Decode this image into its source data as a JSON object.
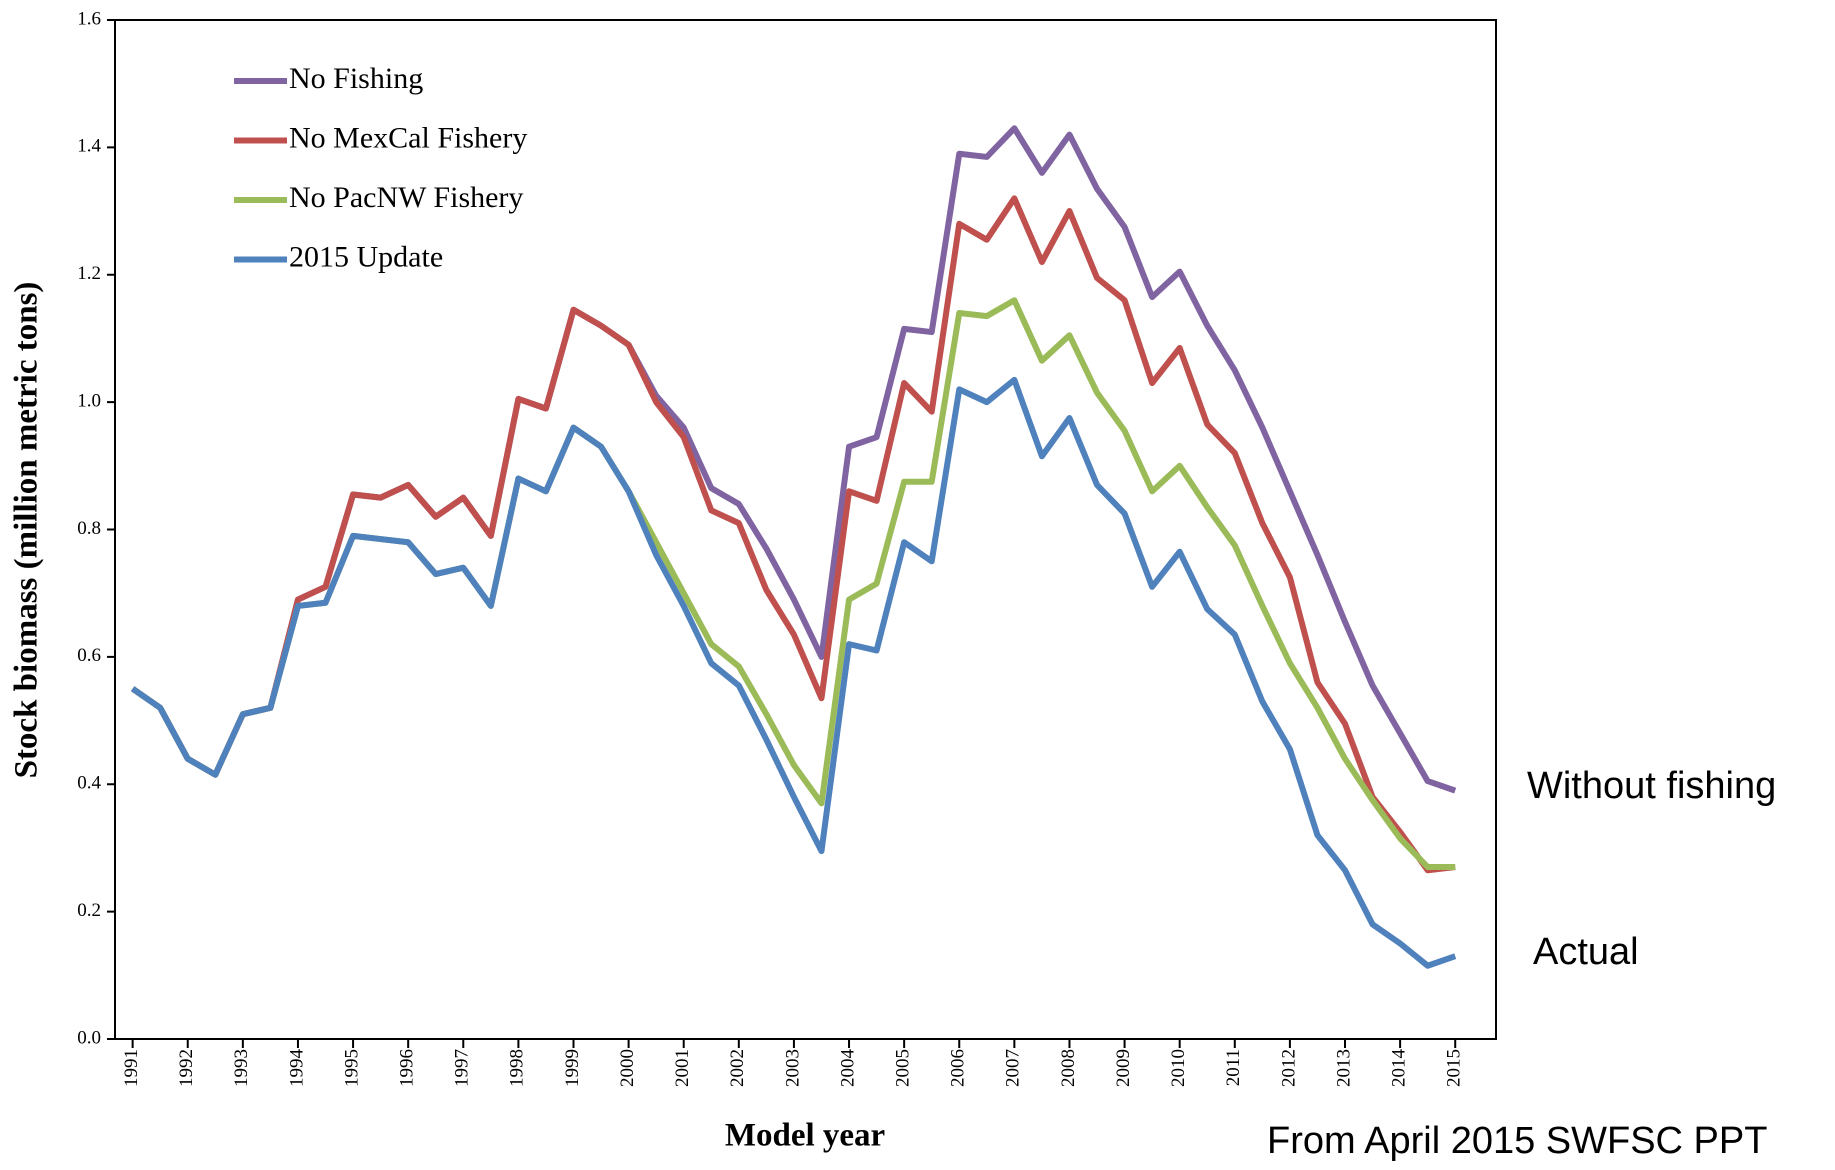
{
  "chart_data": {
    "type": "line",
    "ylabel": "Stock biomass (million metric tons)",
    "xlabel": "Model year",
    "annotations": [
      "Without fishing",
      "Actual",
      "From April 2015 SWFSC PPT"
    ],
    "x": [
      1991,
      1991.5,
      1992,
      1992.5,
      1993,
      1993.5,
      1994,
      1994.5,
      1995,
      1995.5,
      1996,
      1996.5,
      1997,
      1997.5,
      1998,
      1998.5,
      1999,
      1999.5,
      2000,
      2000.5,
      2001,
      2001.5,
      2002,
      2002.5,
      2003,
      2003.5,
      2004,
      2004.5,
      2005,
      2005.5,
      2006,
      2006.5,
      2007,
      2007.5,
      2008,
      2008.5,
      2009,
      2009.5,
      2010,
      2010.5,
      2011,
      2011.5,
      2012,
      2012.5,
      2013,
      2013.5,
      2014,
      2014.5,
      2015
    ],
    "xlim": [
      1990.68,
      2015.74
    ],
    "xticks": [
      1991,
      1992,
      1993,
      1994,
      1995,
      1996,
      1997,
      1998,
      1999,
      2000,
      2001,
      2002,
      2003,
      2004,
      2005,
      2006,
      2007,
      2008,
      2009,
      2010,
      2011,
      2012,
      2013,
      2014,
      2015
    ],
    "ylim": [
      0,
      1.6
    ],
    "yticks": [
      {
        "value": 0,
        "label": "0.0"
      },
      0.2,
      0.4,
      0.6,
      0.8,
      {
        "value": 1,
        "label": "1.0"
      },
      1.2,
      1.4,
      1.6
    ],
    "legend": "upper left",
    "series": [
      {
        "name": "No Fishing",
        "color": "#8064a2",
        "values": [
          0.55,
          0.52,
          0.44,
          0.415,
          0.51,
          0.52,
          0.69,
          0.71,
          0.855,
          0.85,
          0.87,
          0.82,
          0.85,
          0.79,
          1.005,
          0.99,
          1.145,
          1.12,
          1.09,
          1.01,
          0.96,
          0.865,
          0.84,
          0.77,
          0.69,
          0.6,
          0.93,
          0.945,
          1.115,
          1.11,
          1.39,
          1.385,
          1.43,
          1.36,
          1.42,
          1.335,
          1.275,
          1.165,
          1.205,
          1.12,
          1.05,
          0.96,
          0.86,
          0.76,
          0.655,
          0.555,
          0.48,
          0.405,
          0.39
        ]
      },
      {
        "name": "No MexCal Fishery",
        "color": "#c0504d",
        "values": [
          0.55,
          0.52,
          0.44,
          0.415,
          0.51,
          0.52,
          0.69,
          0.71,
          0.855,
          0.85,
          0.87,
          0.82,
          0.85,
          0.79,
          1.005,
          0.99,
          1.145,
          1.12,
          1.09,
          1.0,
          0.945,
          0.83,
          0.81,
          0.705,
          0.635,
          0.535,
          0.86,
          0.845,
          1.03,
          0.985,
          1.28,
          1.255,
          1.32,
          1.22,
          1.3,
          1.195,
          1.16,
          1.03,
          1.085,
          0.965,
          0.92,
          0.81,
          0.725,
          0.56,
          0.495,
          0.38,
          0.325,
          0.265,
          0.27
        ]
      },
      {
        "name": "No PacNW Fishery",
        "color": "#9bbb59",
        "values": [
          0.55,
          0.52,
          0.44,
          0.415,
          0.51,
          0.52,
          0.68,
          0.685,
          0.79,
          0.785,
          0.78,
          0.73,
          0.74,
          0.68,
          0.88,
          0.86,
          0.96,
          0.93,
          0.86,
          0.78,
          0.7,
          0.62,
          0.585,
          0.51,
          0.43,
          0.37,
          0.69,
          0.715,
          0.875,
          0.875,
          1.14,
          1.135,
          1.16,
          1.065,
          1.105,
          1.015,
          0.955,
          0.86,
          0.9,
          0.835,
          0.775,
          0.68,
          0.59,
          0.52,
          0.44,
          0.375,
          0.315,
          0.27,
          0.27
        ]
      },
      {
        "name": "2015 Update",
        "color": "#4f81bd",
        "values": [
          0.55,
          0.52,
          0.44,
          0.415,
          0.51,
          0.52,
          0.68,
          0.685,
          0.79,
          0.785,
          0.78,
          0.73,
          0.74,
          0.68,
          0.88,
          0.86,
          0.96,
          0.93,
          0.86,
          0.76,
          0.68,
          0.59,
          0.555,
          0.47,
          0.38,
          0.295,
          0.62,
          0.61,
          0.78,
          0.75,
          1.02,
          1.0,
          1.035,
          0.915,
          0.975,
          0.87,
          0.825,
          0.71,
          0.765,
          0.675,
          0.635,
          0.53,
          0.455,
          0.32,
          0.265,
          0.18,
          0.15,
          0.115,
          0.13
        ]
      }
    ]
  }
}
